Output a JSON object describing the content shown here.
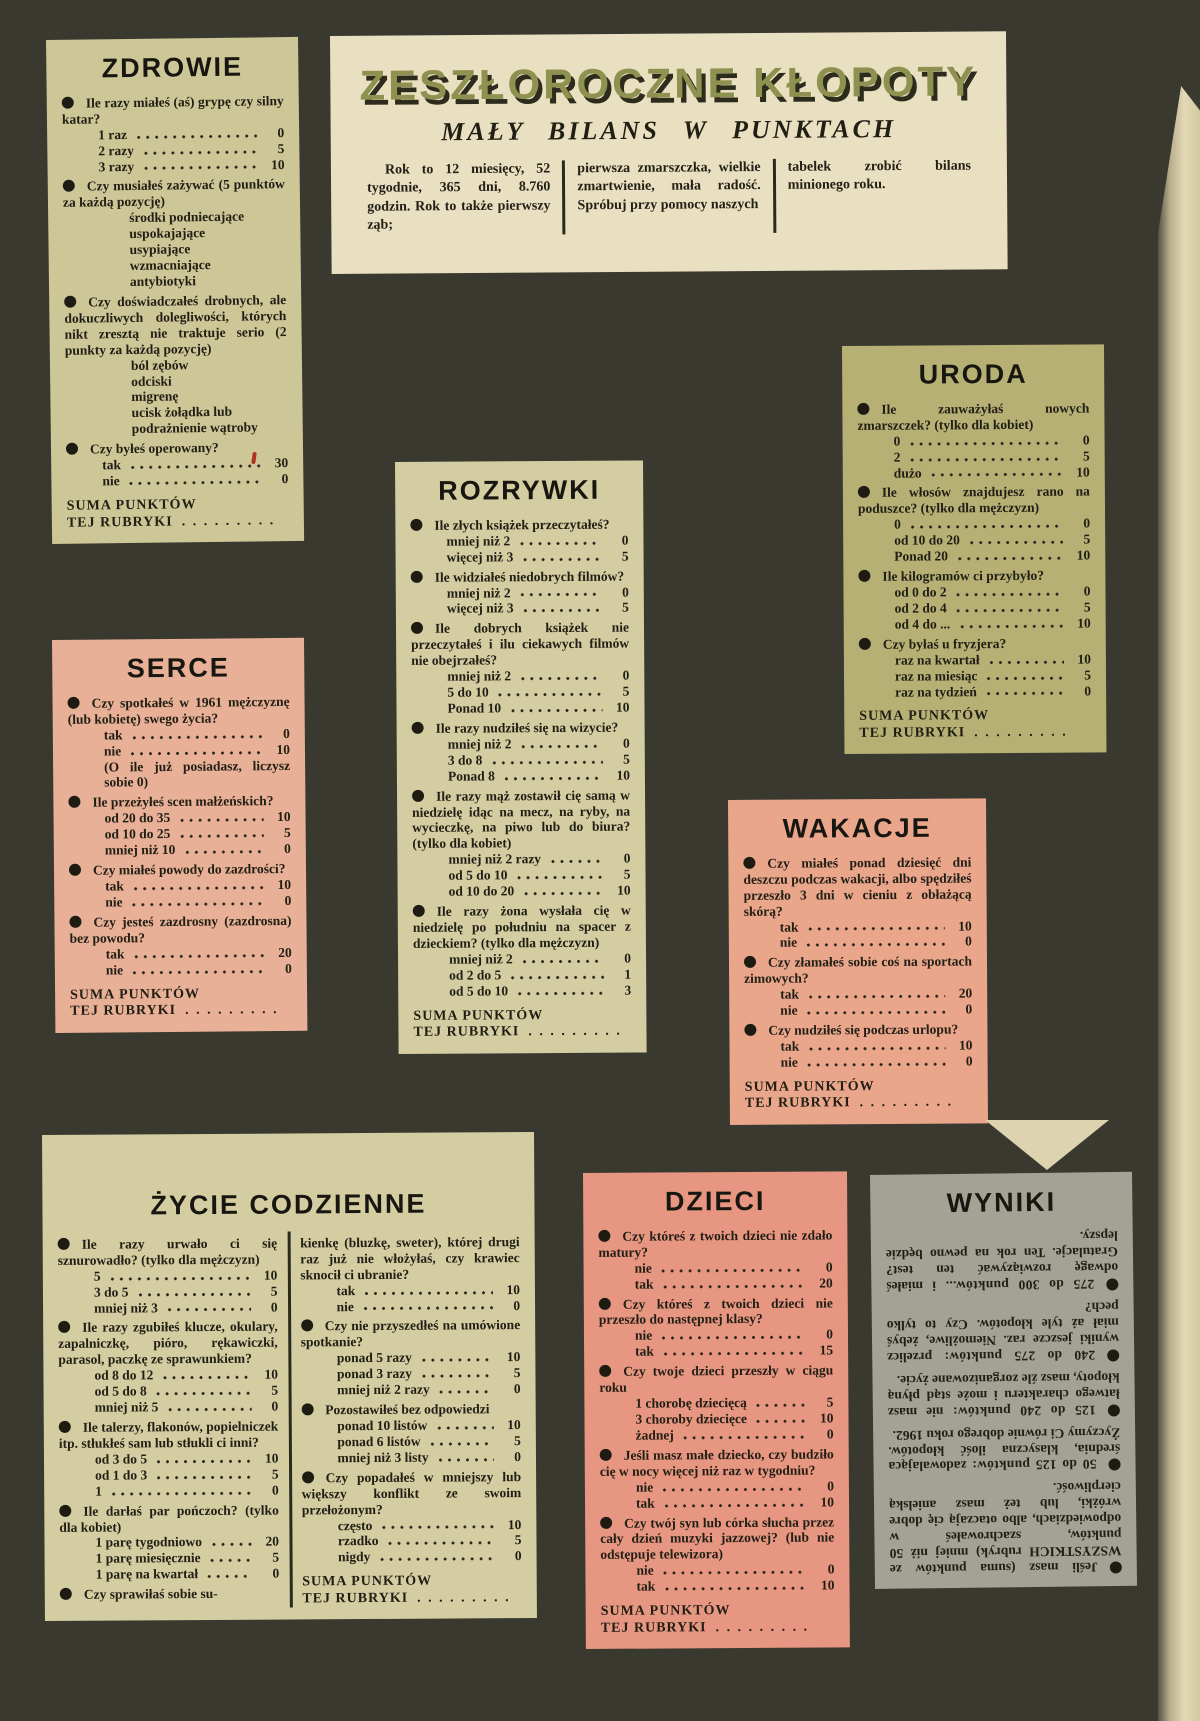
{
  "header": {
    "title": "ZESZŁOROCZNE KŁOPOTY",
    "subtitle": "MAŁY BILANS W PUNKTACH",
    "intro_columns": [
      "Rok to 12 miesięcy, 52 tygodnie, 365 dni, 8.760 godzin. Rok to także pierwszy ząb;",
      "pierwsza zmarszczka, wielkie zmartwienie, mała radość. Spróbuj przy pomocy naszych",
      "tabelek zrobić bilans minionego roku."
    ]
  },
  "suma": {
    "line1": "SUMA PUNKTÓW",
    "line2": "TEJ RUBRYKI",
    "dots": ". . . . . . . . ."
  },
  "boxes": {
    "zdrowie": {
      "title": "ZDROWIE",
      "questions": [
        {
          "q": "Ile razy miałeś (aś) grypę czy silny katar?",
          "options": [
            [
              "1 raz",
              "0"
            ],
            [
              "2 razy",
              "5"
            ],
            [
              "3 razy",
              "10"
            ]
          ]
        },
        {
          "q": "Czy musiałeś zażywać (5 punktów za każdą pozycję)",
          "items": [
            "środki podniecające",
            "uspokajające",
            "usypiające",
            "wzmacniające",
            "antybiotyki"
          ]
        },
        {
          "q": "Czy doświadczałeś drobnych, ale dokuczliwych dolegliwości, których nikt zresztą nie traktuje serio (2 punkty za każdą pozycję)",
          "items": [
            "ból zębów",
            "odciski",
            "migrenę",
            "ucisk żołądka lub podrażnienie wątroby"
          ]
        },
        {
          "q": "Czy byłeś operowany?",
          "options": [
            [
              "tak",
              "30"
            ],
            [
              "nie",
              "0"
            ]
          ]
        }
      ]
    },
    "uroda": {
      "title": "URODA",
      "questions": [
        {
          "q": "Ile zauważyłaś nowych zmarszczek? (tylko dla kobiet)",
          "options": [
            [
              "0",
              "0"
            ],
            [
              "2",
              "5"
            ],
            [
              "dużo",
              "10"
            ]
          ]
        },
        {
          "q": "Ile włosów znajdujesz rano na poduszce? (tylko dla mężczyzn)",
          "options": [
            [
              "0",
              "0"
            ],
            [
              "od 10 do 20",
              "5"
            ],
            [
              "Ponad 20",
              "10"
            ]
          ]
        },
        {
          "q": "Ile kilogramów ci przybyło?",
          "options": [
            [
              "od 0 do 2",
              "0"
            ],
            [
              "od 2 do 4",
              "5"
            ],
            [
              "od 4 do ...",
              "10"
            ]
          ]
        },
        {
          "q": "Czy byłaś u fryzjera?",
          "options": [
            [
              "raz na kwartał",
              "10"
            ],
            [
              "raz na miesiąc",
              "5"
            ],
            [
              "raz na tydzień",
              "0"
            ]
          ]
        }
      ]
    },
    "rozrywki": {
      "title": "ROZRYWKI",
      "questions": [
        {
          "q": "Ile złych książek przeczytałeś?",
          "options": [
            [
              "mniej niż 2",
              "0"
            ],
            [
              "więcej niż 3",
              "5"
            ]
          ]
        },
        {
          "q": "Ile widziałeś niedobrych filmów?",
          "options": [
            [
              "mniej niż 2",
              "0"
            ],
            [
              "więcej niż 3",
              "5"
            ]
          ]
        },
        {
          "q": "Ile dobrych książek nie przeczytałeś i ilu ciekawych filmów nie obejrzałeś?",
          "options": [
            [
              "mniej niż 2",
              "0"
            ],
            [
              "5 do 10",
              "5"
            ],
            [
              "Ponad 10",
              "10"
            ]
          ]
        },
        {
          "q": "Ile razy nudziłeś się na wizycie?",
          "options": [
            [
              "mniej niż 2",
              "0"
            ],
            [
              "3 do 8",
              "5"
            ],
            [
              "Ponad 8",
              "10"
            ]
          ]
        },
        {
          "q": "Ile razy mąż zostawił cię samą w niedzielę idąc na mecz, na ryby, na wycieczkę, na piwo lub do biura? (tylko dla kobiet)",
          "options": [
            [
              "mniej niż 2 razy",
              "0"
            ],
            [
              "od 5 do 10",
              "5"
            ],
            [
              "od 10 do 20",
              "10"
            ]
          ]
        },
        {
          "q": "Ile razy żona wysłała cię w niedzielę po południu na spacer z dzieckiem? (tylko dla mężczyzn)",
          "options": [
            [
              "mniej niż 2",
              "0"
            ],
            [
              "od 2 do 5",
              "1"
            ],
            [
              "od 5 do 10",
              "3"
            ]
          ]
        }
      ]
    },
    "serce": {
      "title": "SERCE",
      "questions": [
        {
          "q": "Czy spotkałeś w 1961 mężczyznę (lub kobietę) swego życia?",
          "options": [
            [
              "tak",
              "0"
            ],
            [
              "nie",
              "10"
            ]
          ],
          "note": "(O ile już posiadasz, liczysz sobie 0)"
        },
        {
          "q": "Ile przeżyłeś scen małżeńskich?",
          "options": [
            [
              "od 20 do 35",
              "10"
            ],
            [
              "od 10 do 25",
              "5"
            ],
            [
              "mniej niż 10",
              "0"
            ]
          ]
        },
        {
          "q": "Czy miałeś powody do zazdrości?",
          "options": [
            [
              "tak",
              "10"
            ],
            [
              "nie",
              "0"
            ]
          ]
        },
        {
          "q": "Czy jesteś zazdrosny (zazdrosna) bez powodu?",
          "options": [
            [
              "tak",
              "20"
            ],
            [
              "nie",
              "0"
            ]
          ]
        }
      ]
    },
    "wakacje": {
      "title": "WAKACJE",
      "questions": [
        {
          "q": "Czy miałeś ponad dziesięć dni deszczu podczas wakacji, albo spędziłeś przeszło 3 dni w cieniu z obłażącą skórą?",
          "options": [
            [
              "tak",
              "10"
            ],
            [
              "nie",
              "0"
            ]
          ]
        },
        {
          "q": "Czy złamałeś sobie coś na sportach zimowych?",
          "options": [
            [
              "tak",
              "20"
            ],
            [
              "nie",
              "0"
            ]
          ]
        },
        {
          "q": "Czy nudziłeś się podczas urlopu?",
          "options": [
            [
              "tak",
              "10"
            ],
            [
              "nie",
              "0"
            ]
          ]
        }
      ]
    },
    "zycie": {
      "title": "ŻYCIE CODZIENNE",
      "columns": [
        [
          {
            "q": "Ile razy urwało ci się sznurowadło? (tylko dla mężczyzn)",
            "options": [
              [
                "5",
                "10"
              ],
              [
                "3 do 5",
                "5"
              ],
              [
                "mniej niż 3",
                "0"
              ]
            ]
          },
          {
            "q": "Ile razy zgubiłeś klucze, okulary, zapalniczkę, pióro, rękawiczki, parasol, paczkę ze sprawunkiem?",
            "options": [
              [
                "od 8 do 12",
                "10"
              ],
              [
                "od 5 do 8",
                "5"
              ],
              [
                "mniej niż 5",
                "0"
              ]
            ]
          },
          {
            "q": "Ile talerzy, flakonów, popielniczek itp. stłukłeś sam lub stłukli ci inni?",
            "options": [
              [
                "od 3 do 5",
                "10"
              ],
              [
                "od 1 do 3",
                "5"
              ],
              [
                "1",
                "0"
              ]
            ]
          },
          {
            "q": "Ile darłaś par pończoch? (tylko dla kobiet)",
            "options": [
              [
                "1 parę tygodniowo",
                "20"
              ],
              [
                "1 parę miesięcznie",
                "5"
              ],
              [
                "1 parę na kwartał",
                "0"
              ]
            ]
          },
          {
            "q": "Czy sprawiłaś sobie su-"
          }
        ],
        [
          {
            "cont": "kienkę (bluzkę, sweter), której drugi raz już nie włożyłaś, czy krawiec sknocił ci ubranie?",
            "options": [
              [
                "tak",
                "10"
              ],
              [
                "nie",
                "0"
              ]
            ]
          },
          {
            "q": "Czy nie przyszedłeś na umówione spotkanie?",
            "options": [
              [
                "ponad 5 razy",
                "10"
              ],
              [
                "ponad 3 razy",
                "5"
              ],
              [
                "mniej niż 2 razy",
                "0"
              ]
            ]
          },
          {
            "q": "Pozostawiłeś bez odpowiedzi",
            "options": [
              [
                "ponad 10 listów",
                "10"
              ],
              [
                "ponad 6 listów",
                "5"
              ],
              [
                "mniej niż 3 listy",
                "0"
              ]
            ]
          },
          {
            "q": "Czy popadałeś w mniejszy lub większy konflikt ze swoim przełożonym?",
            "options": [
              [
                "często",
                "10"
              ],
              [
                "rzadko",
                "5"
              ],
              [
                "nigdy",
                "0"
              ]
            ]
          }
        ]
      ]
    },
    "dzieci": {
      "title": "DZIECI",
      "questions": [
        {
          "q": "Czy któreś z twoich dzieci nie zdało matury?",
          "options": [
            [
              "nie",
              "0"
            ],
            [
              "tak",
              "20"
            ]
          ]
        },
        {
          "q": "Czy któreś z twoich dzieci nie przeszło do następnej klasy?",
          "options": [
            [
              "nie",
              "0"
            ],
            [
              "tak",
              "15"
            ]
          ]
        },
        {
          "q": "Czy twoje dzieci przeszły w ciągu roku",
          "options": [
            [
              "1 chorobę dziecięcą",
              "5"
            ],
            [
              "3 choroby dziecięce",
              "10"
            ],
            [
              "żadnej",
              "0"
            ]
          ]
        },
        {
          "q": "Jeśli masz małe dziecko, czy budziło cię w nocy więcej niż raz w tygodniu?",
          "options": [
            [
              "nie",
              "0"
            ],
            [
              "tak",
              "10"
            ]
          ]
        },
        {
          "q": "Czy twój syn lub córka słucha przez cały dzień muzyki jazzowej? (lub nie odstępuje telewizora)",
          "options": [
            [
              "nie",
              "0"
            ],
            [
              "tak",
              "10"
            ]
          ]
        }
      ]
    }
  },
  "wyniki": {
    "title": "WYNIKI",
    "bullets": [
      {
        "lead": "",
        "text": "Jeśli masz (suma punktów ze WSZYSTKICH rubryk) mniej niż 50 punktów, szachrowałeś w odpowiedziach, albo otaczają cię dobre wróżki, lub też masz anielską cierpliwość."
      },
      {
        "lead": "50 do 125 punktów:",
        "text": "zadowalająca średnia, klasyczna ilość kłopotów. Życzymy Ci równie dobrego roku 1962."
      },
      {
        "lead": "125 do 240 punktów:",
        "text": "nie masz łatwego charakteru i może stąd płyną kłopoty, masz źle zorganizowane życie."
      },
      {
        "lead": "240 do 275 punktów:",
        "text": "przelicz wyniki jeszcze raz. Niemożliwe, żebyś miał aż tyle kłopotów. Czy to tylko pech?"
      },
      {
        "lead": "275 do 300 punktów...",
        "text": "i miałeś odwagę rozwiązywać ten test? Gratulacje. Ten rok na pewno będzie lepszy."
      }
    ]
  }
}
